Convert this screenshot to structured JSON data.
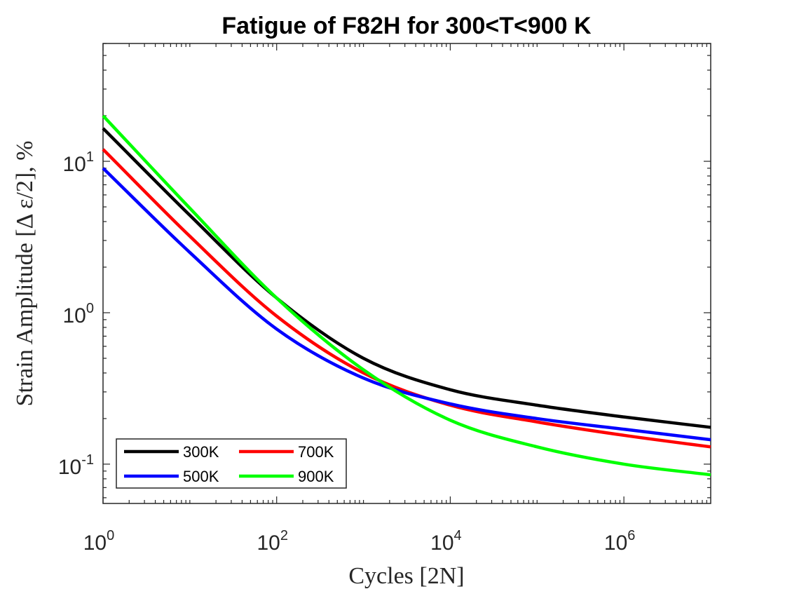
{
  "chart_data": {
    "type": "line",
    "title": "Fatigue of F82H for 300<T<900 K",
    "xlabel": "Cycles [2N]",
    "ylabel": "Strain Amplitude [Δ ε/2], %",
    "xscale": "log",
    "yscale": "log",
    "xlim": [
      1,
      10000000
    ],
    "ylim": [
      0.055,
      60
    ],
    "x_ticks": [
      {
        "base": "10",
        "exp": "0",
        "value": 1
      },
      {
        "base": "10",
        "exp": "2",
        "value": 100
      },
      {
        "base": "10",
        "exp": "4",
        "value": 10000
      },
      {
        "base": "10",
        "exp": "6",
        "value": 1000000
      }
    ],
    "y_ticks": [
      {
        "base": "10",
        "exp": "-1",
        "value": 0.1
      },
      {
        "base": "10",
        "exp": "0",
        "value": 1
      },
      {
        "base": "10",
        "exp": "1",
        "value": 10
      }
    ],
    "grid": false,
    "legend_position": "bottom-left",
    "legend_columns": 2,
    "x": [
      1,
      10,
      100,
      1000,
      10000,
      100000,
      1000000,
      10000000
    ],
    "series": [
      {
        "name": "300K",
        "color": "#000000",
        "values": [
          16.5,
          4.4,
          1.25,
          0.5,
          0.31,
          0.245,
          0.205,
          0.175
        ]
      },
      {
        "name": "700K",
        "color": "#ff0000",
        "values": [
          12.0,
          3.2,
          0.95,
          0.4,
          0.245,
          0.19,
          0.155,
          0.13
        ]
      },
      {
        "name": "500K",
        "color": "#0000ff",
        "values": [
          9.0,
          2.5,
          0.78,
          0.37,
          0.25,
          0.2,
          0.17,
          0.145
        ]
      },
      {
        "name": "900K",
        "color": "#00ff00",
        "values": [
          20.0,
          4.9,
          1.25,
          0.42,
          0.195,
          0.13,
          0.1,
          0.085
        ]
      }
    ]
  }
}
